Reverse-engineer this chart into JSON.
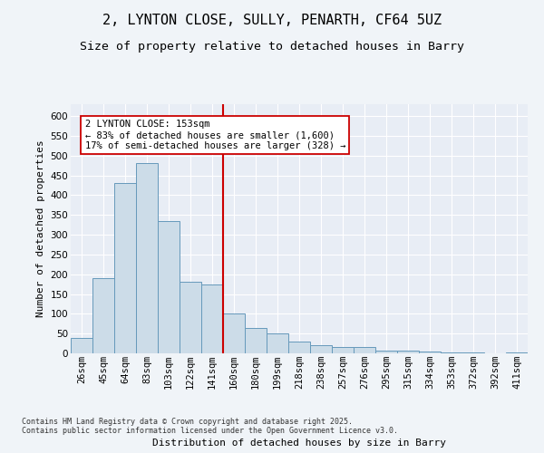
{
  "title1": "2, LYNTON CLOSE, SULLY, PENARTH, CF64 5UZ",
  "title2": "Size of property relative to detached houses in Barry",
  "xlabel": "Distribution of detached houses by size in Barry",
  "ylabel": "Number of detached properties",
  "categories": [
    "26sqm",
    "45sqm",
    "64sqm",
    "83sqm",
    "103sqm",
    "122sqm",
    "141sqm",
    "160sqm",
    "180sqm",
    "199sqm",
    "218sqm",
    "238sqm",
    "257sqm",
    "276sqm",
    "295sqm",
    "315sqm",
    "334sqm",
    "353sqm",
    "372sqm",
    "392sqm",
    "411sqm"
  ],
  "values": [
    40,
    190,
    430,
    480,
    335,
    180,
    175,
    100,
    65,
    50,
    30,
    20,
    15,
    15,
    7,
    7,
    5,
    3,
    2,
    1,
    2
  ],
  "bar_color": "#ccdce8",
  "bar_edge_color": "#6699bb",
  "property_line_color": "#cc0000",
  "property_line_bin": 7,
  "annotation_line1": "2 LYNTON CLOSE: 153sqm",
  "annotation_line2": "← 83% of detached houses are smaller (1,600)",
  "annotation_line3": "17% of semi-detached houses are larger (328) →",
  "annotation_box_facecolor": "#ffffff",
  "annotation_box_edgecolor": "#cc0000",
  "ylim_max": 630,
  "yticks": [
    0,
    50,
    100,
    150,
    200,
    250,
    300,
    350,
    400,
    450,
    500,
    550,
    600
  ],
  "footer_line1": "Contains HM Land Registry data © Crown copyright and database right 2025.",
  "footer_line2": "Contains public sector information licensed under the Open Government Licence v3.0.",
  "plot_bg_color": "#e8edf5",
  "fig_bg_color": "#f0f4f8",
  "grid_color": "#ffffff",
  "title1_fontsize": 11,
  "title2_fontsize": 9.5,
  "axis_label_fontsize": 8,
  "tick_fontsize": 7.5,
  "footer_fontsize": 6,
  "annotation_fontsize": 7.5
}
